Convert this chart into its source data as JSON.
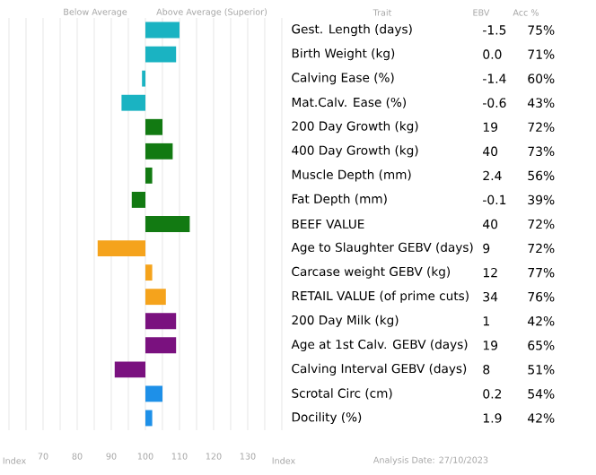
{
  "chart_data": {
    "type": "bar",
    "orientation": "horizontal",
    "xlabel": "Index",
    "categories": [
      "Gest. Length (days)",
      "Birth Weight (kg)",
      "Calving Ease (%)",
      "Mat.Calv. Ease (%)",
      "200 Day Growth (kg)",
      "400 Day Growth (kg)",
      "Muscle Depth (mm)",
      "Fat Depth (mm)",
      "BEEF VALUE",
      "Age to Slaughter GEBV (days)",
      "Carcase weight GEBV (kg)",
      "RETAIL VALUE (of prime cuts)",
      "200 Day Milk (kg)",
      "Age at 1st Calv. GEBV (days)",
      "Calving Interval GEBV (days)",
      "Scrotal Circ (cm)",
      "Docility (%)"
    ],
    "base": [
      100,
      100,
      100,
      100,
      100,
      100,
      100,
      100,
      100,
      100,
      100,
      100,
      100,
      100,
      100,
      100,
      100
    ],
    "values": [
      10,
      9,
      -1,
      -7,
      5,
      8,
      2,
      -4,
      13,
      -14,
      2,
      6,
      9,
      9,
      -9,
      5,
      2
    ],
    "colors": [
      "#1ab3c2",
      "#1ab3c2",
      "#1ab3c2",
      "#1ab3c2",
      "#127a12",
      "#127a12",
      "#127a12",
      "#127a12",
      "#127a12",
      "#f5a31c",
      "#f5a31c",
      "#f5a31c",
      "#7a117f",
      "#7a117f",
      "#7a117f",
      "#1e90e8",
      "#1e90e8"
    ],
    "xlim": [
      60,
      140
    ],
    "xticks": [
      {
        "value": 60,
        "label": null
      },
      70,
      80,
      90,
      100,
      110,
      120,
      130,
      {
        "value": 140,
        "label": null
      }
    ],
    "grid": "x",
    "annotations": [
      "Below Average",
      "Above Average (Superior)",
      "Trait",
      "EBV",
      "Acc %",
      "Index",
      "Analysis Date: 27/10/2023",
      "-1.5",
      "75%",
      "0.0",
      "71%",
      "-1.4",
      "60%",
      "-0.6",
      "43%",
      "19",
      "72%",
      "40",
      "73%",
      "2.4",
      "56%",
      "-0.1",
      "39%",
      "40",
      "72%",
      "9",
      "72%",
      "12",
      "77%",
      "34",
      "76%",
      "1",
      "42%",
      "19",
      "65%",
      "8",
      "51%",
      "0.2",
      "54%",
      "1.9",
      "42%"
    ]
  }
}
